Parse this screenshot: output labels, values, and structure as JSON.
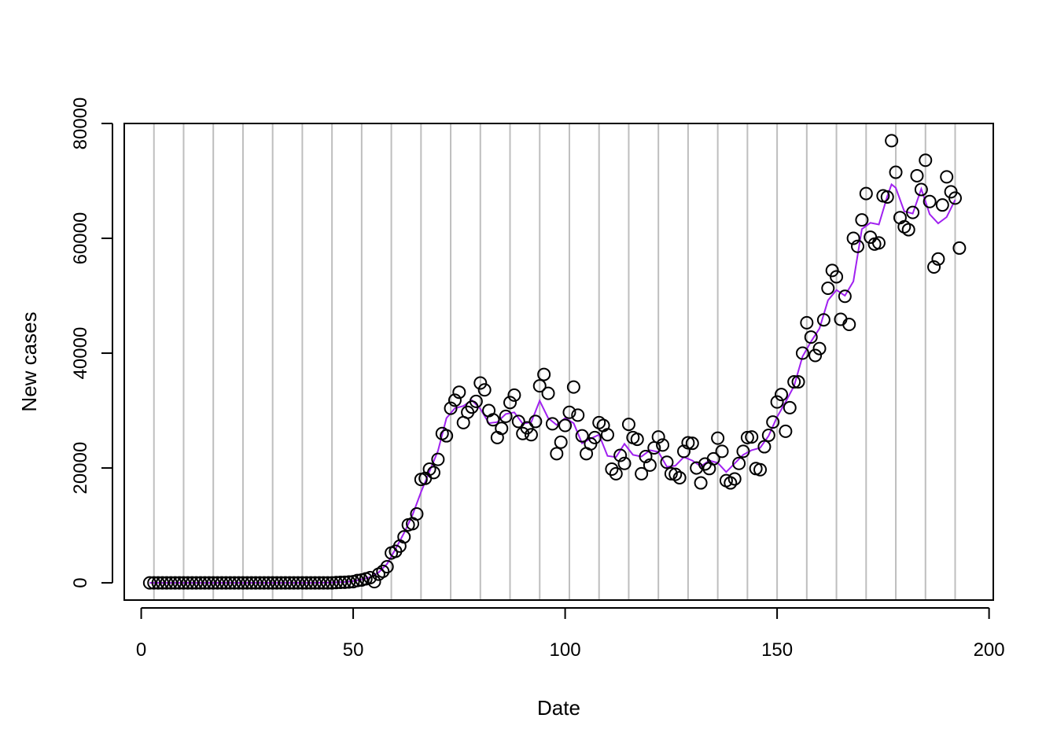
{
  "chart_data": {
    "type": "scatter",
    "xlabel": "Date",
    "ylabel": "New cases",
    "xlim": [
      -4,
      201
    ],
    "ylim": [
      -3000,
      80000
    ],
    "x_ticks": [
      0,
      50,
      100,
      150,
      200
    ],
    "x_tick_labels": [
      "0",
      "50",
      "100",
      "150",
      "200"
    ],
    "y_ticks": [
      0,
      20000,
      40000,
      60000,
      80000
    ],
    "y_tick_labels": [
      "0",
      "20000",
      "40000",
      "60000",
      "80000"
    ],
    "grid": "vertical",
    "grid_x": [
      3,
      10,
      17,
      24,
      31,
      38,
      45,
      52,
      59,
      66,
      73,
      80,
      87,
      94,
      101,
      108,
      115,
      122,
      129,
      136,
      143,
      150,
      157,
      164,
      171,
      178,
      185,
      192
    ],
    "colors": {
      "points": "#000000",
      "smooth": "#a020f0",
      "grid": "#bebebe",
      "axis": "#000000"
    },
    "series": [
      {
        "type": "scatter",
        "x": [
          2,
          3,
          4,
          5,
          6,
          7,
          8,
          9,
          10,
          11,
          12,
          13,
          14,
          15,
          16,
          17,
          18,
          19,
          20,
          21,
          22,
          23,
          24,
          25,
          26,
          27,
          28,
          29,
          30,
          31,
          32,
          33,
          34,
          35,
          36,
          37,
          38,
          39,
          40,
          41,
          42,
          43,
          44,
          45,
          46,
          47,
          48,
          49,
          50,
          51,
          52,
          53,
          54,
          55,
          56,
          57,
          58,
          59,
          60,
          61,
          62,
          63,
          64,
          65,
          66,
          67,
          68,
          69,
          70,
          71,
          72,
          73,
          74,
          75,
          76,
          77,
          78,
          79,
          80,
          81,
          82,
          83,
          84,
          85,
          86,
          87,
          88,
          89,
          90,
          91,
          92,
          93,
          94,
          95,
          96,
          97,
          98,
          99,
          100,
          101,
          102,
          103,
          104,
          105,
          106,
          107,
          108,
          109,
          110,
          111,
          112,
          113,
          114,
          115,
          116,
          117,
          118,
          119,
          120,
          121,
          122,
          123,
          124,
          125,
          126,
          127,
          128,
          129,
          130,
          131,
          132,
          133,
          134,
          135,
          136,
          137,
          138,
          139,
          140,
          141,
          142,
          143,
          144,
          145,
          146,
          147,
          148,
          149,
          150,
          151,
          152,
          153,
          154,
          155,
          156,
          157,
          158,
          159,
          160,
          161,
          162,
          163,
          164,
          165,
          166,
          167,
          168,
          169,
          170,
          171,
          172,
          173,
          174,
          175,
          176,
          177,
          178,
          179,
          180,
          181,
          182,
          183,
          184,
          185,
          186,
          187,
          188,
          189,
          190,
          191,
          192,
          193
        ],
        "y": [
          0,
          0,
          0,
          0,
          0,
          0,
          0,
          0,
          0,
          0,
          0,
          0,
          0,
          0,
          0,
          0,
          0,
          0,
          0,
          0,
          0,
          0,
          0,
          0,
          0,
          0,
          0,
          0,
          0,
          0,
          0,
          0,
          0,
          0,
          0,
          0,
          0,
          0,
          0,
          0,
          0,
          0,
          0,
          0,
          50,
          80,
          100,
          150,
          200,
          400,
          500,
          700,
          900,
          200,
          1500,
          2000,
          2800,
          5200,
          5500,
          6400,
          8000,
          10100,
          10300,
          12000,
          18000,
          18200,
          19800,
          19200,
          21500,
          26000,
          25600,
          30400,
          31800,
          33200,
          27900,
          29700,
          30600,
          31600,
          34800,
          33600,
          30000,
          28400,
          25300,
          26900,
          29000,
          31400,
          32700,
          28100,
          26000,
          27000,
          25800,
          28100,
          34300,
          36300,
          33000,
          27700,
          22500,
          24500,
          27400,
          29700,
          34100,
          29200,
          25600,
          22500,
          24200,
          25300,
          27900,
          27400,
          25800,
          19800,
          19000,
          22200,
          20800,
          27600,
          25300,
          25000,
          19000,
          22000,
          20500,
          23500,
          25400,
          24000,
          21000,
          19000,
          18900,
          18300,
          22900,
          24400,
          24300,
          20000,
          17400,
          20700,
          19900,
          21600,
          25200,
          22900,
          17800,
          17400,
          18100,
          20800,
          22900,
          25300,
          25400,
          19900,
          19700,
          23700,
          25700,
          28000,
          31500,
          32800,
          26400,
          30500,
          35000,
          35000,
          40000,
          45300,
          42800,
          39600,
          40800,
          45800,
          51300,
          54400,
          53300,
          45900,
          49900,
          45000,
          60000,
          58600,
          63200,
          67800,
          60200,
          59000,
          59200,
          67400,
          67200,
          77000,
          71500,
          63600,
          62000,
          61500,
          64500,
          70900,
          68500,
          73600,
          66400,
          55000,
          56400,
          65800,
          70700,
          68100,
          67000,
          58300
        ]
      },
      {
        "type": "line",
        "x": [
          2,
          10,
          20,
          30,
          40,
          45,
          48,
          50,
          52,
          54,
          56,
          58,
          60,
          62,
          64,
          66,
          68,
          70,
          72,
          74,
          76,
          78,
          80,
          82,
          84,
          86,
          88,
          90,
          92,
          94,
          96,
          98,
          100,
          102,
          104,
          106,
          108,
          110,
          112,
          114,
          116,
          118,
          120,
          122,
          124,
          126,
          128,
          130,
          132,
          134,
          136,
          138,
          140,
          142,
          144,
          146,
          148,
          150,
          152,
          154,
          156,
          158,
          160,
          162,
          164,
          166,
          168,
          170,
          172,
          174,
          176,
          177,
          178,
          180,
          182,
          184,
          186,
          188,
          190,
          192
        ],
        "y": [
          0,
          0,
          0,
          0,
          0,
          50,
          150,
          300,
          600,
          1000,
          1800,
          3300,
          5900,
          8700,
          11800,
          15800,
          19400,
          23000,
          28700,
          30400,
          30800,
          31800,
          30300,
          27800,
          28000,
          29400,
          29700,
          27700,
          28000,
          31700,
          28700,
          27500,
          28700,
          27800,
          24300,
          25100,
          25800,
          22100,
          21900,
          24200,
          22300,
          22000,
          23100,
          22800,
          20200,
          20400,
          21900,
          21300,
          20300,
          21300,
          20900,
          19300,
          20800,
          22300,
          23100,
          23500,
          25600,
          28900,
          31500,
          34300,
          39400,
          42000,
          44300,
          49200,
          51000,
          50000,
          52500,
          61600,
          62700,
          62400,
          67300,
          69400,
          68800,
          64700,
          64300,
          68600,
          64200,
          62600,
          63700,
          66700
        ]
      }
    ]
  }
}
